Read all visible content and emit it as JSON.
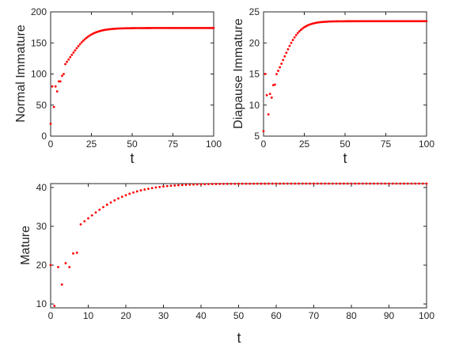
{
  "chart_data": [
    {
      "type": "scatter",
      "ylabel": "Normal Immature",
      "xlabel": "t",
      "xlim": [
        0,
        100
      ],
      "ylim": [
        0,
        200
      ],
      "xticks": [
        "0",
        "25",
        "50",
        "75",
        "100"
      ],
      "yticks": [
        "0",
        "50",
        "100",
        "150",
        "200"
      ],
      "grid": false,
      "marker_color": "#ff0000",
      "model": {
        "start": 80,
        "end": 174,
        "rate": 0.16,
        "shift": 12
      },
      "early_points": [
        [
          0,
          20
        ],
        [
          1,
          80
        ],
        [
          2,
          47
        ],
        [
          3,
          80
        ],
        [
          4,
          72
        ],
        [
          5,
          88
        ],
        [
          6,
          88
        ],
        [
          7,
          97
        ],
        [
          8,
          100
        ]
      ]
    },
    {
      "type": "scatter",
      "ylabel": "Diapause Immature",
      "xlabel": "t",
      "xlim": [
        0,
        100
      ],
      "ylim": [
        5,
        25
      ],
      "xticks": [
        "0",
        "25",
        "50",
        "75",
        "100"
      ],
      "yticks": [
        "5",
        "10",
        "15",
        "20",
        "25"
      ],
      "grid": false,
      "marker_color": "#ff0000",
      "model": {
        "start": 11,
        "end": 23.5,
        "rate": 0.19,
        "shift": 12
      },
      "early_points": [
        [
          0,
          5.8
        ],
        [
          1,
          15
        ],
        [
          2,
          11.6
        ],
        [
          3,
          8.5
        ],
        [
          4,
          11.8
        ],
        [
          5,
          11.2
        ],
        [
          6,
          13.2
        ],
        [
          7,
          13.3
        ]
      ]
    },
    {
      "type": "scatter",
      "ylabel": "Mature",
      "xlabel": "t",
      "xlim": [
        0,
        100
      ],
      "ylim": [
        9,
        41
      ],
      "xticks": [
        "0",
        "10",
        "20",
        "30",
        "40",
        "50",
        "60",
        "70",
        "80",
        "90",
        "100"
      ],
      "yticks": [
        "10",
        "20",
        "30",
        "40"
      ],
      "grid": false,
      "marker_color": "#ff0000",
      "model": {
        "start": 20,
        "end": 41,
        "rate": 0.15,
        "shift": 8
      },
      "early_points": [
        [
          0,
          20
        ],
        [
          1,
          9.5
        ],
        [
          2,
          19.5
        ],
        [
          3,
          15
        ],
        [
          4,
          20.5
        ],
        [
          5,
          19.5
        ],
        [
          6,
          23
        ],
        [
          7,
          23.2
        ]
      ]
    }
  ]
}
